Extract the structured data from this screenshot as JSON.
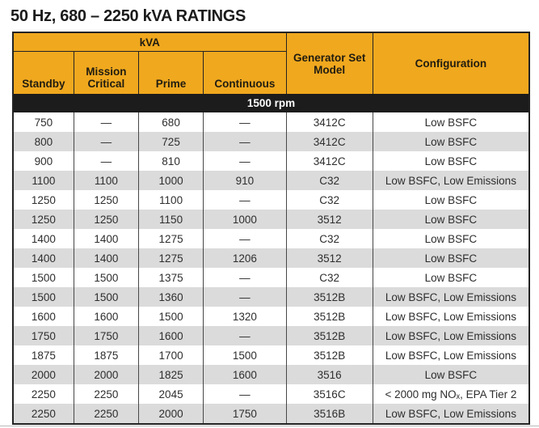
{
  "title": "50 Hz, 680 – 2250 kVA RATINGS",
  "colors": {
    "header_gold": "#F0A81E",
    "band_black": "#1C1C1C",
    "stripe_gray": "#DBDBDB",
    "border_dark": "#232323",
    "text_dark": "#2E2E2E"
  },
  "table": {
    "kva_group_label": "kVA",
    "columns": [
      "Standby",
      "Mission Critical",
      "Prime",
      "Continuous",
      "Generator Set Model",
      "Configuration"
    ],
    "rpm_label": "1500 rpm",
    "rows": [
      [
        "750",
        "—",
        "680",
        "—",
        "3412C",
        "Low BSFC"
      ],
      [
        "800",
        "—",
        "725",
        "—",
        "3412C",
        "Low BSFC"
      ],
      [
        "900",
        "—",
        "810",
        "—",
        "3412C",
        "Low BSFC"
      ],
      [
        "1100",
        "1100",
        "1000",
        "910",
        "C32",
        "Low BSFC, Low Emissions"
      ],
      [
        "1250",
        "1250",
        "1100",
        "—",
        "C32",
        "Low BSFC"
      ],
      [
        "1250",
        "1250",
        "1150",
        "1000",
        "3512",
        "Low BSFC"
      ],
      [
        "1400",
        "1400",
        "1275",
        "—",
        "C32",
        "Low BSFC"
      ],
      [
        "1400",
        "1400",
        "1275",
        "1206",
        "3512",
        "Low BSFC"
      ],
      [
        "1500",
        "1500",
        "1375",
        "—",
        "C32",
        "Low BSFC"
      ],
      [
        "1500",
        "1500",
        "1360",
        "—",
        "3512B",
        "Low BSFC, Low Emissions"
      ],
      [
        "1600",
        "1600",
        "1500",
        "1320",
        "3512B",
        "Low BSFC, Low Emissions"
      ],
      [
        "1750",
        "1750",
        "1600",
        "—",
        "3512B",
        "Low BSFC, Low Emissions"
      ],
      [
        "1875",
        "1875",
        "1700",
        "1500",
        "3512B",
        "Low BSFC, Low Emissions"
      ],
      [
        "2000",
        "2000",
        "1825",
        "1600",
        "3516",
        "Low BSFC"
      ],
      [
        "2250",
        "2250",
        "2045",
        "—",
        "3516C",
        "< 2000 mg NOₓ, EPA Tier 2"
      ],
      [
        "2250",
        "2250",
        "2000",
        "1750",
        "3516B",
        "Low BSFC, Low Emissions"
      ]
    ]
  }
}
